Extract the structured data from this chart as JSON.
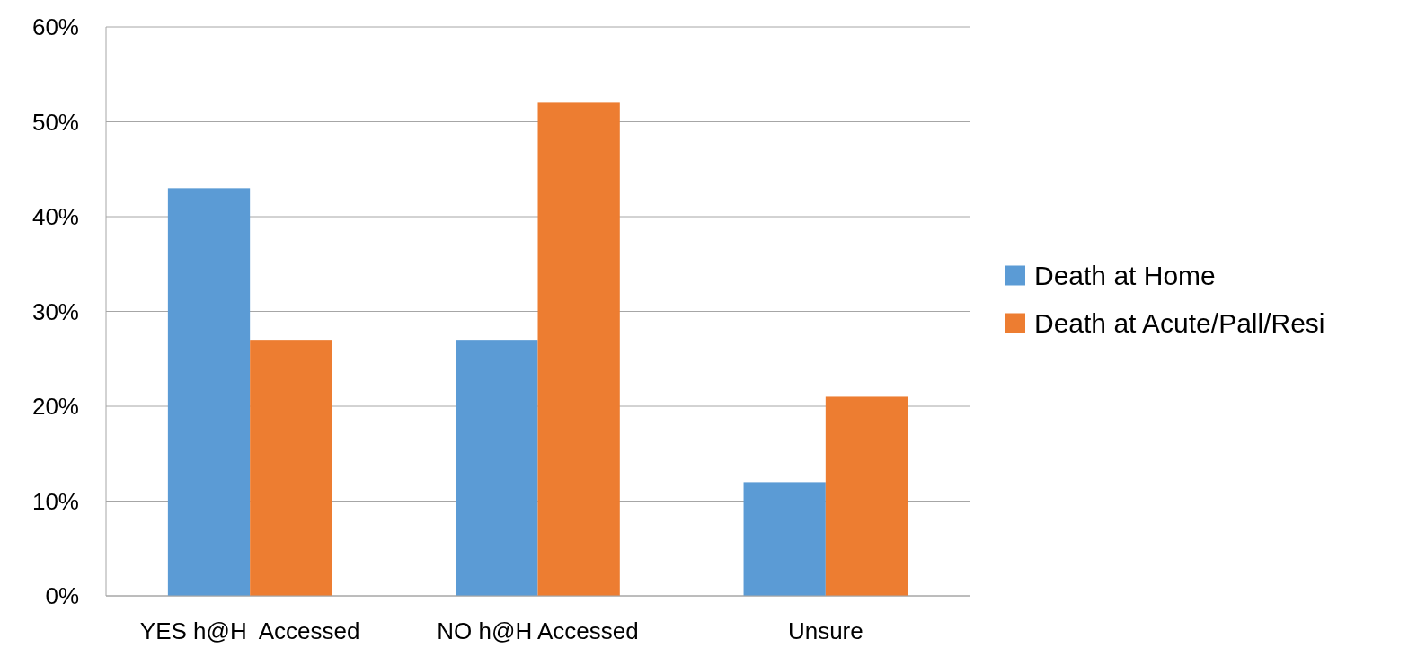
{
  "chart_data": {
    "type": "bar",
    "categories": [
      "YES h@H  Accessed",
      "NO h@H Accessed",
      "Unsure"
    ],
    "series": [
      {
        "name": "Death at Home",
        "color": "#5b9bd5",
        "values": [
          43,
          27,
          12
        ]
      },
      {
        "name": "Death at Acute/Pall/Resi",
        "color": "#ed7d31",
        "values": [
          27,
          52,
          21
        ]
      }
    ],
    "ylim": [
      0,
      60
    ],
    "yticks": [
      {
        "value": 0,
        "label": "0%"
      },
      {
        "value": 10,
        "label": "10%"
      },
      {
        "value": 20,
        "label": "20%"
      },
      {
        "value": 30,
        "label": "30%"
      },
      {
        "value": 40,
        "label": "40%"
      },
      {
        "value": 50,
        "label": "50%"
      },
      {
        "value": 60,
        "label": "60%"
      }
    ],
    "grid": "y",
    "legend": "right"
  }
}
